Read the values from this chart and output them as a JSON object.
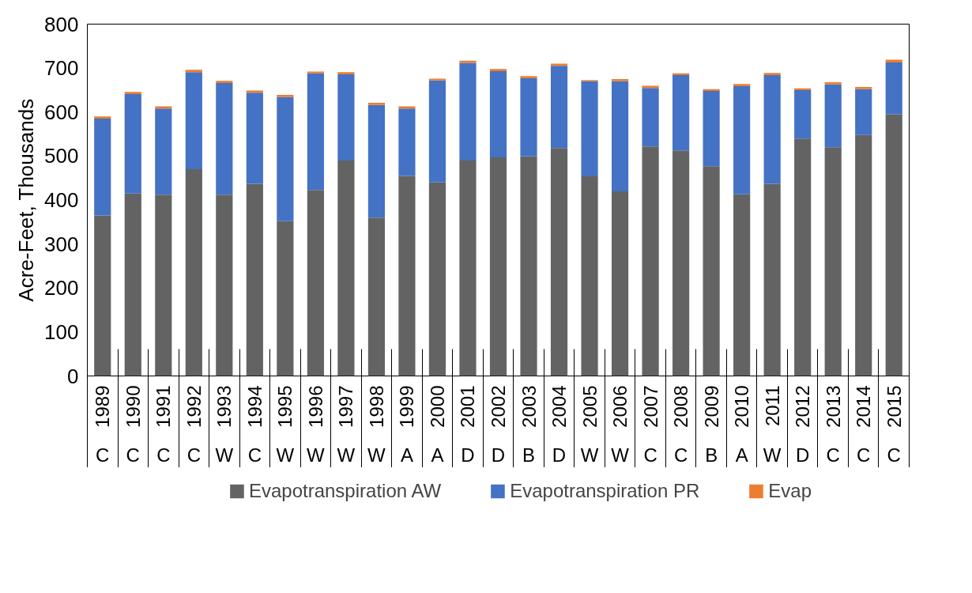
{
  "chart_data": {
    "type": "bar",
    "stacked": true,
    "ylabel": "Acre-Feet, Thousands",
    "categories": [
      "1989",
      "1990",
      "1991",
      "1992",
      "1993",
      "1994",
      "1995",
      "1996",
      "1997",
      "1998",
      "1999",
      "2000",
      "2001",
      "2002",
      "2003",
      "2004",
      "2005",
      "2006",
      "2007",
      "2008",
      "2009",
      "2010",
      "2011",
      "2012",
      "2013",
      "2014",
      "2015"
    ],
    "series": [
      {
        "name": "Evapotranspiration AW",
        "color": "#636363",
        "values": [
          365,
          415,
          412,
          470,
          412,
          437,
          352,
          423,
          490,
          360,
          455,
          440,
          490,
          497,
          500,
          518,
          454,
          420,
          522,
          513,
          477,
          413,
          437,
          540,
          520,
          548,
          595
        ]
      },
      {
        "name": "Evapotranspiration PR",
        "color": "#4472c4",
        "values": [
          220,
          226,
          196,
          221,
          254,
          207,
          282,
          265,
          196,
          256,
          153,
          232,
          222,
          196,
          177,
          187,
          216,
          250,
          133,
          171,
          171,
          246,
          247,
          110,
          143,
          104,
          118
        ]
      },
      {
        "name": "Evap",
        "color": "#ed7d31",
        "values": [
          5,
          5,
          5,
          5,
          5,
          5,
          5,
          4,
          5,
          5,
          5,
          4,
          5,
          5,
          5,
          5,
          3,
          5,
          5,
          4,
          4,
          5,
          5,
          4,
          5,
          5,
          6
        ]
      }
    ],
    "annotations": [
      "C",
      "C",
      "C",
      "C",
      "W",
      "C",
      "W",
      "W",
      "W",
      "W",
      "A",
      "A",
      "D",
      "D",
      "B",
      "D",
      "W",
      "W",
      "C",
      "C",
      "B",
      "A",
      "W",
      "D",
      "C",
      "C",
      "C"
    ],
    "ylim": [
      0,
      800
    ],
    "yticks": [
      0,
      100,
      200,
      300,
      400,
      500,
      600,
      700,
      800
    ],
    "grid": false,
    "legend": "bottom"
  }
}
